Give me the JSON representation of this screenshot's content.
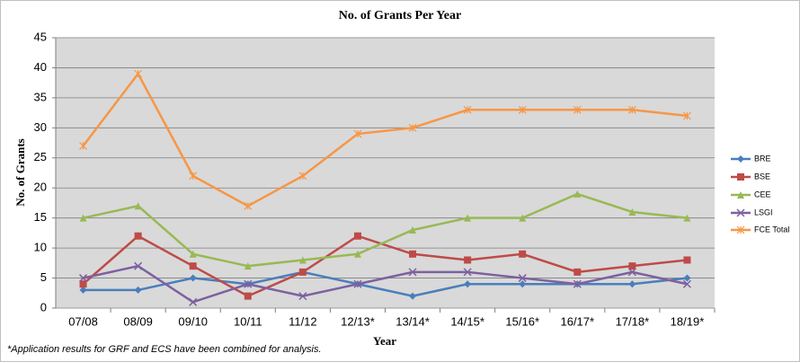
{
  "chart_data": {
    "type": "line",
    "title": "No. of Grants Per Year",
    "x_label": "Year",
    "y_label": "No. of Grants",
    "footnote": "*Application results for GRF and ECS have been combined for analysis.",
    "categories": [
      "07/08",
      "08/09",
      "09/10",
      "10/11",
      "11/12",
      "12/13*",
      "13/14*",
      "14/15*",
      "15/16*",
      "16/17*",
      "17/18*",
      "18/19*"
    ],
    "series": [
      {
        "name": "BRE",
        "color": "#4a7ebb",
        "marker": "diamond",
        "values": [
          3,
          3,
          5,
          4,
          6,
          4,
          2,
          4,
          4,
          4,
          4,
          5
        ]
      },
      {
        "name": "BSE",
        "color": "#be4b48",
        "marker": "square",
        "values": [
          4,
          12,
          7,
          2,
          6,
          12,
          9,
          8,
          9,
          6,
          7,
          8
        ]
      },
      {
        "name": "CEE",
        "color": "#98b954",
        "marker": "triangle",
        "values": [
          15,
          17,
          9,
          7,
          8,
          9,
          13,
          15,
          15,
          19,
          16,
          15
        ]
      },
      {
        "name": "LSGI",
        "color": "#7d60a0",
        "marker": "x",
        "values": [
          5,
          7,
          1,
          4,
          2,
          4,
          6,
          6,
          5,
          4,
          6,
          4
        ]
      },
      {
        "name": "FCE Total",
        "color": "#f79646",
        "marker": "star",
        "values": [
          27,
          39,
          22,
          17,
          22,
          29,
          30,
          33,
          33,
          33,
          33,
          32
        ]
      }
    ],
    "ylim": [
      0,
      45
    ],
    "yticks": [
      0,
      5,
      10,
      15,
      20,
      25,
      30,
      35,
      40,
      45
    ],
    "grid": true,
    "legend": "right"
  }
}
